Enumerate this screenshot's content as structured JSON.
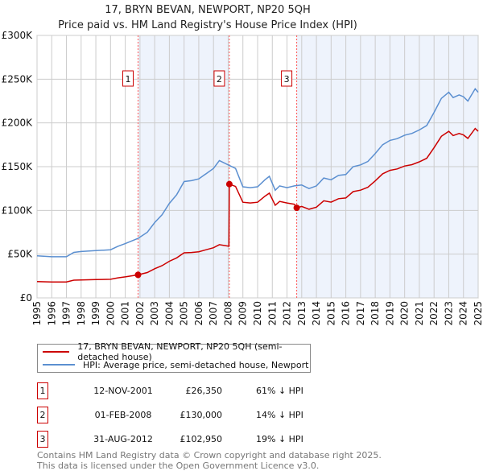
{
  "title": "17, BRYN BEVAN, NEWPORT, NP20 5QH",
  "subtitle": "Price paid vs. HM Land Registry's House Price Index (HPI)",
  "colors": {
    "property": "#cc0000",
    "hpi": "#5b8fd0",
    "shade": "#eef3fc",
    "grid": "#cccccc",
    "marker_line": "#ff5555"
  },
  "chart_data": {
    "type": "line",
    "xlim": [
      1995,
      2025
    ],
    "ylim": [
      0,
      300000
    ],
    "ytick_values": [
      0,
      50000,
      100000,
      150000,
      200000,
      250000,
      300000
    ],
    "ytick_labels": [
      "£0",
      "£50K",
      "£100K",
      "£150K",
      "£200K",
      "£250K",
      "£300K"
    ],
    "xtick_labels": [
      "1995",
      "1996",
      "1997",
      "1998",
      "1999",
      "2000",
      "2001",
      "2002",
      "2003",
      "2004",
      "2005",
      "2006",
      "2007",
      "2008",
      "2009",
      "2010",
      "2011",
      "2012",
      "2013",
      "2014",
      "2015",
      "2016",
      "2017",
      "2018",
      "2019",
      "2020",
      "2021",
      "2022",
      "2023",
      "2024",
      "2025"
    ],
    "grid": true,
    "shaded_ranges": [
      [
        2001.87,
        2008.08
      ],
      [
        2012.66,
        2025
      ]
    ],
    "series": [
      {
        "name": "17, BRYN BEVAN, NEWPORT, NP20 5QH (semi-detached house)",
        "color": "#cc0000",
        "x": [
          1995,
          1996,
          1997,
          1997.5,
          1998,
          1999,
          2000,
          2000.5,
          2001,
          2001.87,
          2002.5,
          2003,
          2003.5,
          2004,
          2004.5,
          2005,
          2005.5,
          2006,
          2006.5,
          2007,
          2007.4,
          2008.05,
          2008.08,
          2008.5,
          2009,
          2009.5,
          2010,
          2010.5,
          2010.8,
          2011.2,
          2011.5,
          2012,
          2012.5,
          2012.66,
          2013,
          2013.5,
          2014,
          2014.5,
          2015,
          2015.5,
          2016,
          2016.5,
          2017,
          2017.5,
          2018,
          2018.5,
          2019,
          2019.5,
          2020,
          2020.5,
          2021,
          2021.5,
          2022,
          2022.5,
          2023,
          2023.3,
          2023.7,
          2024,
          2024.3,
          2024.8,
          2025
        ],
        "y": [
          18600,
          18200,
          18200,
          20200,
          20500,
          20900,
          21300,
          22900,
          24000,
          26350,
          29000,
          33300,
          36800,
          41900,
          45700,
          51500,
          51900,
          52700,
          55000,
          57300,
          60800,
          59000,
          130000,
          127400,
          109300,
          108500,
          109300,
          116200,
          119700,
          105900,
          110200,
          108500,
          107000,
          102950,
          104500,
          101300,
          103700,
          111000,
          109400,
          113400,
          114200,
          121500,
          123100,
          126400,
          133700,
          141800,
          145800,
          147400,
          150700,
          152300,
          155500,
          159600,
          171700,
          184700,
          190400,
          185500,
          187900,
          186300,
          182300,
          193600,
          190400
        ]
      },
      {
        "name": "HPI: Average price, semi-detached house, Newport",
        "color": "#5b8fd0",
        "x": [
          1995,
          1996,
          1997,
          1997.5,
          1998,
          1999,
          2000,
          2000.5,
          2001,
          2001.87,
          2002.5,
          2003,
          2003.5,
          2004,
          2004.5,
          2005,
          2005.5,
          2006,
          2006.5,
          2007,
          2007.4,
          2008,
          2008.5,
          2009,
          2009.5,
          2010,
          2010.5,
          2010.8,
          2011.2,
          2011.5,
          2012,
          2012.5,
          2013,
          2013.5,
          2014,
          2014.5,
          2015,
          2015.5,
          2016,
          2016.5,
          2017,
          2017.5,
          2018,
          2018.5,
          2019,
          2019.5,
          2020,
          2020.5,
          2021,
          2021.5,
          2022,
          2022.5,
          2023,
          2023.3,
          2023.7,
          2024,
          2024.3,
          2024.8,
          2025
        ],
        "y": [
          48000,
          47000,
          47000,
          52000,
          53000,
          54000,
          55000,
          59000,
          62000,
          68000,
          75000,
          86000,
          95000,
          108000,
          118000,
          133000,
          134000,
          136000,
          142000,
          148000,
          157000,
          152000,
          148000,
          127000,
          126000,
          127000,
          135000,
          139000,
          123000,
          128000,
          126000,
          128000,
          129000,
          125000,
          128000,
          137000,
          135000,
          140000,
          141000,
          150000,
          152000,
          156000,
          165000,
          175000,
          180000,
          182000,
          186000,
          188000,
          192000,
          197000,
          212000,
          228000,
          235000,
          229000,
          232000,
          230000,
          225000,
          239000,
          235000
        ]
      }
    ],
    "sales": [
      {
        "label": "1",
        "x": 2001.87,
        "y": 26350
      },
      {
        "label": "2",
        "x": 2008.08,
        "y": 130000
      },
      {
        "label": "3",
        "x": 2012.66,
        "y": 102950
      }
    ]
  },
  "legend": {
    "property": "17, BRYN BEVAN, NEWPORT, NP20 5QH (semi-detached house)",
    "hpi": "HPI: Average price, semi-detached house, Newport"
  },
  "transactions": [
    {
      "num": "1",
      "date": "12-NOV-2001",
      "price": "£26,350",
      "hpi": "61% ↓ HPI"
    },
    {
      "num": "2",
      "date": "01-FEB-2008",
      "price": "£130,000",
      "hpi": "14% ↓ HPI"
    },
    {
      "num": "3",
      "date": "31-AUG-2012",
      "price": "£102,950",
      "hpi": "19% ↓ HPI"
    }
  ],
  "footer": {
    "line1": "Contains HM Land Registry data © Crown copyright and database right 2025.",
    "line2": "This data is licensed under the Open Government Licence v3.0."
  }
}
